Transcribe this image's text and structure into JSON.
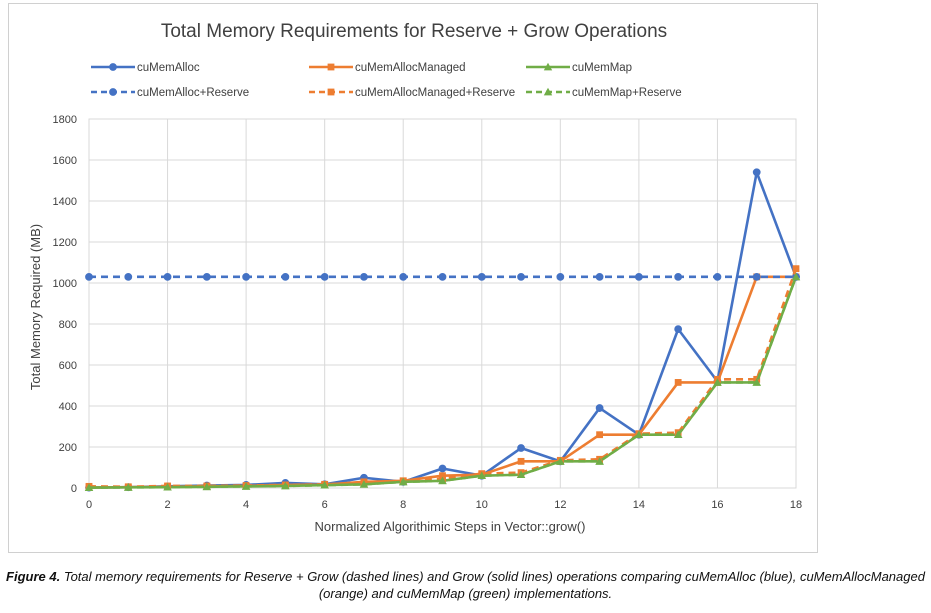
{
  "chart_data": {
    "type": "line",
    "title": "Total Memory Requirements for Reserve + Grow Operations",
    "xlabel": "Normalized Algorithimic Steps in Vector::grow()",
    "ylabel": "Total Memory Required (MB)",
    "xlim": [
      0,
      18
    ],
    "ylim": [
      0,
      1800
    ],
    "xticks": [
      0,
      2,
      4,
      6,
      8,
      10,
      12,
      14,
      16,
      18
    ],
    "yticks": [
      0,
      200,
      400,
      600,
      800,
      1000,
      1200,
      1400,
      1600,
      1800
    ],
    "grid": true,
    "legend_position": "top",
    "x": [
      0,
      1,
      2,
      3,
      4,
      5,
      6,
      7,
      8,
      9,
      10,
      11,
      12,
      13,
      14,
      15,
      16,
      17,
      18
    ],
    "series": [
      {
        "name": "cuMemAlloc",
        "color": "#4472C4",
        "style": "solid",
        "marker": "circle",
        "values": [
          2,
          4,
          8,
          12,
          15,
          25,
          18,
          50,
          30,
          95,
          60,
          195,
          130,
          390,
          260,
          775,
          520,
          1540,
          1030
        ]
      },
      {
        "name": "cuMemAllocManaged",
        "color": "#ED7D31",
        "style": "solid",
        "marker": "square",
        "values": [
          2,
          4,
          6,
          8,
          10,
          15,
          16,
          30,
          35,
          60,
          65,
          130,
          130,
          260,
          260,
          515,
          515,
          1030,
          1030
        ]
      },
      {
        "name": "cuMemMap",
        "color": "#70AD47",
        "style": "solid",
        "marker": "triangle",
        "values": [
          2,
          3,
          4,
          6,
          8,
          10,
          14,
          18,
          30,
          35,
          60,
          65,
          130,
          130,
          260,
          260,
          515,
          515,
          1030
        ]
      },
      {
        "name": "cuMemAlloc+Reserve",
        "color": "#4472C4",
        "style": "dashed",
        "marker": "circle",
        "values": [
          1030,
          1030,
          1030,
          1030,
          1030,
          1030,
          1030,
          1030,
          1030,
          1030,
          1030,
          1030,
          1030,
          1030,
          1030,
          1030,
          1030,
          1030,
          1030
        ]
      },
      {
        "name": "cuMemAllocManaged+Reserve",
        "color": "#ED7D31",
        "style": "dashed",
        "marker": "square",
        "values": [
          8,
          6,
          10,
          10,
          12,
          15,
          18,
          25,
          35,
          45,
          70,
          75,
          135,
          140,
          265,
          270,
          530,
          530,
          1070
        ]
      },
      {
        "name": "cuMemMap+Reserve",
        "color": "#70AD47",
        "style": "dashed",
        "marker": "triangle",
        "values": [
          2,
          3,
          4,
          6,
          8,
          10,
          14,
          18,
          30,
          35,
          60,
          65,
          130,
          130,
          260,
          260,
          515,
          515,
          1030
        ]
      }
    ]
  },
  "caption": {
    "label": "Figure 4.",
    "text": " Total memory requirements for Reserve + Grow (dashed lines) and Grow (solid lines) operations comparing cuMemAlloc (blue), cuMemAllocManaged (orange) and cuMemMap (green) implementations."
  }
}
